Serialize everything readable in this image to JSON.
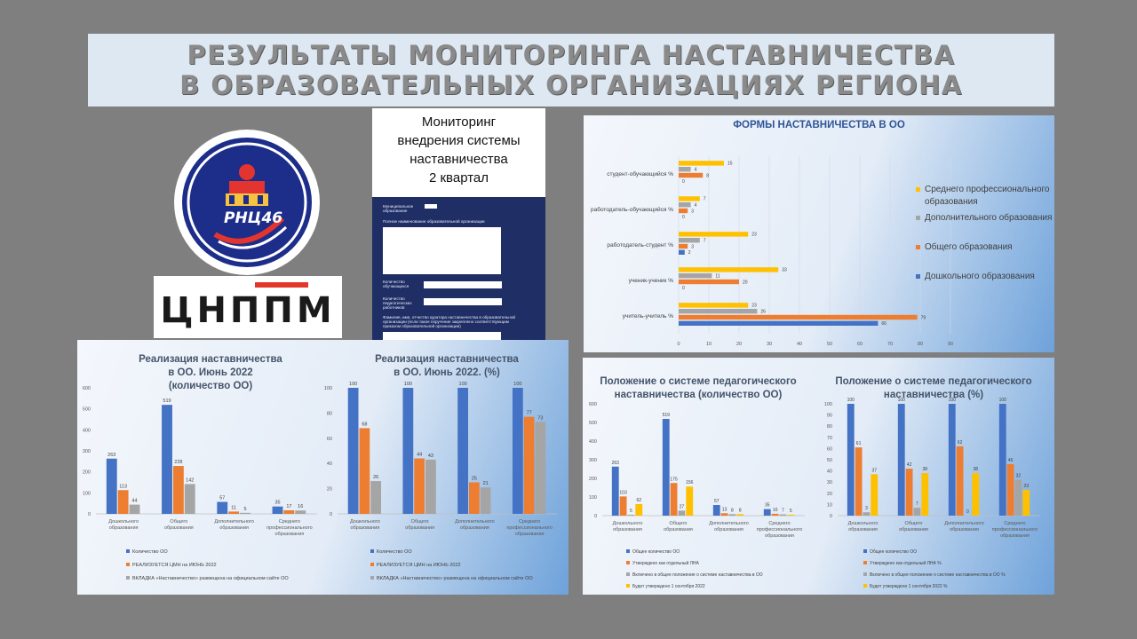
{
  "banner": {
    "line1": "РЕЗУЛЬТАТЫ МОНИТОРИНГА НАСТАВНИЧЕСТВА",
    "line2": "В ОБРАЗОВАТЕЛЬНЫХ ОРГАНИЗАЦИЯХ РЕГИОНА"
  },
  "logos": {
    "rnc": "РНЦ46",
    "cnppm": "ЦНППМ"
  },
  "monitoring": {
    "title_lines": [
      "Мониторинг",
      "внедрения системы",
      "наставничества",
      "2 квартал"
    ],
    "form": {
      "municipal": "Муниципальное образование",
      "fullname": "Полное наименование образовательной организации",
      "students": "Количество обучающихся",
      "teachers": "Количество педагогических работников",
      "curator": "Фамилия, имя, отчество куратора наставничества в образовательной организации (если такое поручение закреплено соответствующим приказом образовательной организации)"
    }
  },
  "colors": {
    "blue": "#4472c4",
    "orange": "#ed7d31",
    "gray": "#a5a5a5",
    "yellow": "#ffc000"
  },
  "chart_data": [
    {
      "type": "bar",
      "orientation": "horizontal",
      "title": "ФОРМЫ НАСТАВНИЧЕСТВА В ОО",
      "categories": [
        "учитель-учитель %",
        "ученик-ученик %",
        "работодатель-студент %",
        "работодатель-обучающийся %",
        "студент-обучающийся %"
      ],
      "series": [
        {
          "name": "Дошкольного образования",
          "values": [
            66,
            0,
            2,
            0,
            0
          ]
        },
        {
          "name": "Общего образования",
          "values": [
            79,
            20,
            3,
            3,
            8
          ]
        },
        {
          "name": "Дополнительного образования",
          "values": [
            26,
            11,
            7,
            4,
            4
          ]
        },
        {
          "name": "Среднего профессионального образования",
          "values": [
            23,
            33,
            23,
            7,
            15
          ]
        }
      ],
      "xlim": [
        0,
        90
      ],
      "xticks": [
        0,
        10,
        20,
        30,
        40,
        50,
        60,
        70,
        80,
        90
      ],
      "legend": "right"
    },
    {
      "type": "bar",
      "title": "Реализация наставничества в ОО. Июнь 2022 (количество ОО)",
      "categories": [
        "Дошкольного образования",
        "Общего образования",
        "Дополнительного образования",
        "Среднего профессионального образования"
      ],
      "series": [
        {
          "name": "Количество ОО",
          "values": [
            263,
            519,
            57,
            35
          ]
        },
        {
          "name": "РЕАЛИЗУЕТСЯ ЦМН на ИЮНЬ 2022",
          "values": [
            113,
            228,
            11,
            17
          ]
        },
        {
          "name": "ВКЛАДКА «Наставничество» размещена на официальном сайте ОО",
          "values": [
            44,
            142,
            5,
            16
          ]
        }
      ],
      "ylim": [
        0,
        600
      ],
      "yticks": [
        0,
        100,
        200,
        300,
        400,
        500,
        600
      ],
      "legend": "bottom"
    },
    {
      "type": "bar",
      "title": "Реализация наставничества в ОО. Июнь 2022. (%)",
      "categories": [
        "Дошкольного образования",
        "Общего образования",
        "Дополнительного образования",
        "Среднего профессионального образования"
      ],
      "series": [
        {
          "name": "Количество ОО",
          "values": [
            100,
            100,
            100,
            100
          ]
        },
        {
          "name": "РЕАЛИЗУЕТСЯ ЦМН на ИЮНЬ 2022",
          "values": [
            68,
            44,
            25,
            77
          ]
        },
        {
          "name": "ВКЛАДКА «Наставничество» размещена на официальном сайте ОО",
          "values": [
            26,
            43,
            21,
            73
          ]
        }
      ],
      "ylim": [
        0,
        100
      ],
      "yticks": [
        0,
        20,
        40,
        60,
        80,
        100
      ],
      "legend": "bottom"
    },
    {
      "type": "bar",
      "title": "Положение о системе педагогического наставничества (количество ОО)",
      "categories": [
        "Дошкольного образования",
        "Общего образования",
        "Дополнительного образования",
        "Среднего профессионального образования"
      ],
      "series": [
        {
          "name": "Общее количество ОО",
          "values": [
            263,
            519,
            57,
            35
          ]
        },
        {
          "name": "Утверждено как отдельный ЛНА",
          "values": [
            103,
            175,
            13,
            10
          ]
        },
        {
          "name": "Включено в общее положение о системе наставничества в ОО",
          "values": [
            5,
            27,
            8,
            7
          ]
        },
        {
          "name": "Будет утверждено 1 сентября 2022",
          "values": [
            62,
            156,
            8,
            5
          ]
        }
      ],
      "ylim": [
        0,
        600
      ],
      "yticks": [
        0,
        100,
        200,
        300,
        400,
        500,
        600
      ],
      "legend": "bottom"
    },
    {
      "type": "bar",
      "title": "Положение о системе педагогического наставничества (%)",
      "categories": [
        "Дошкольного образования",
        "Общего образования",
        "Дополнительного образования",
        "Среднего профессионального образования"
      ],
      "series": [
        {
          "name": "Общее количество ОО",
          "values": [
            100,
            100,
            100,
            100
          ]
        },
        {
          "name": "Утверждено как отдельный ЛНА %",
          "values": [
            61,
            42,
            62,
            46
          ]
        },
        {
          "name": "Включено в общее положение о системе наставничества в ОО %",
          "values": [
            3,
            7,
            0,
            32
          ]
        },
        {
          "name": "Будет утверждено 1 сентября 2022 %",
          "values": [
            37,
            38,
            38,
            23
          ]
        }
      ],
      "ylim": [
        0,
        100
      ],
      "yticks": [
        0,
        10,
        20,
        30,
        40,
        50,
        60,
        70,
        80,
        90,
        100
      ],
      "legend": "bottom"
    }
  ]
}
